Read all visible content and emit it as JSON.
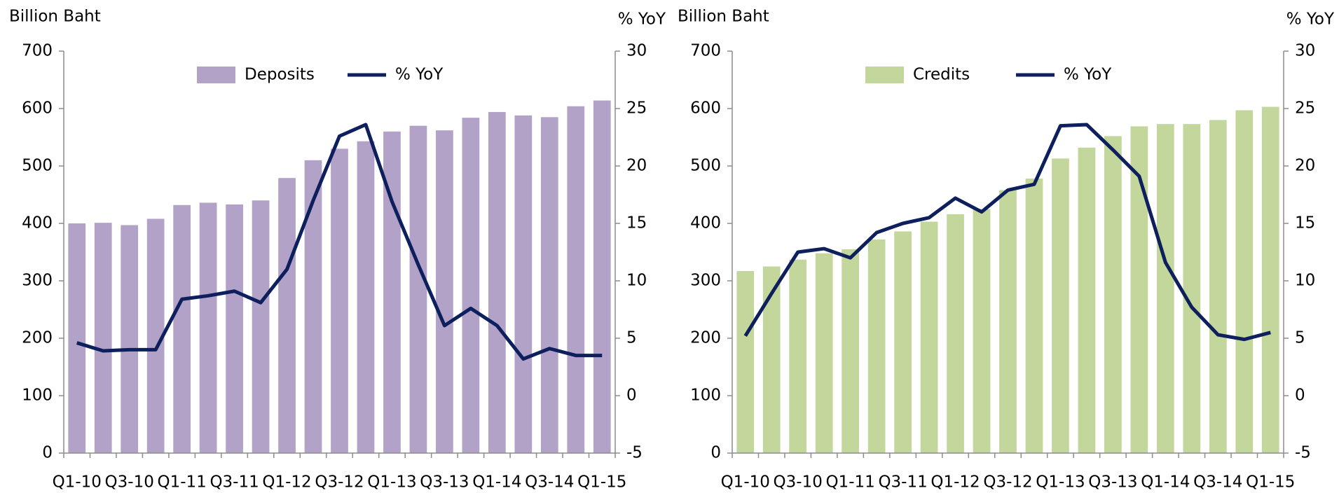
{
  "chart_data": [
    {
      "type": "bar",
      "y_label": "Billion Baht",
      "y2_label": "% YoY",
      "categories": [
        "Q1-10",
        null,
        "Q3-10",
        null,
        "Q1-11",
        null,
        "Q3-11",
        null,
        "Q1-12",
        null,
        "Q3-12",
        null,
        "Q1-13",
        null,
        "Q3-13",
        null,
        "Q1-14",
        null,
        "Q3-14",
        null,
        "Q1-15"
      ],
      "series": [
        {
          "name": "Deposits",
          "type": "bar",
          "color": "#b3a2c7",
          "values": [
            400,
            401,
            397,
            408,
            432,
            436,
            433,
            440,
            479,
            510,
            530,
            543,
            560,
            570,
            562,
            584,
            594,
            588,
            585,
            604,
            614
          ]
        },
        {
          "name": "% YoY",
          "type": "line",
          "axis": "y2",
          "color": "#0d1f5c",
          "values": [
            4.6,
            3.9,
            4.0,
            4.0,
            8.4,
            8.7,
            9.1,
            8.1,
            11.0,
            17.0,
            22.6,
            23.6,
            16.9,
            11.4,
            6.1,
            7.6,
            6.1,
            3.2,
            4.1,
            3.5,
            3.5
          ]
        }
      ],
      "ylim": [
        0,
        700
      ],
      "yticks": [
        0,
        100,
        200,
        300,
        400,
        500,
        600,
        700
      ],
      "y2lim": [
        -5,
        30
      ],
      "y2ticks": [
        -5,
        0,
        5,
        10,
        15,
        20,
        25,
        30
      ],
      "legend": "top",
      "grid": false
    },
    {
      "type": "bar",
      "y_label": "Billion Baht",
      "y2_label": "% YoY",
      "categories": [
        "Q1-10",
        null,
        "Q3-10",
        null,
        "Q1-11",
        null,
        "Q3-11",
        null,
        "Q1-12",
        null,
        "Q3-12",
        null,
        "Q1-13",
        null,
        "Q3-13",
        null,
        "Q1-14",
        null,
        "Q3-14",
        null,
        "Q1-15"
      ],
      "series": [
        {
          "name": "Credits",
          "type": "bar",
          "color": "#c3d69b",
          "values": [
            317,
            325,
            337,
            348,
            355,
            372,
            386,
            403,
            416,
            425,
            458,
            478,
            513,
            532,
            552,
            569,
            573,
            573,
            580,
            597,
            603
          ]
        },
        {
          "name": "% YoY",
          "type": "line",
          "axis": "y2",
          "color": "#0d1f5c",
          "values": [
            5.2,
            8.9,
            12.5,
            12.8,
            12.0,
            14.2,
            15.0,
            15.5,
            17.2,
            16.0,
            17.9,
            18.4,
            23.5,
            23.6,
            21.4,
            19.1,
            11.6,
            7.7,
            5.3,
            4.9,
            5.5
          ]
        }
      ],
      "ylim": [
        0,
        700
      ],
      "yticks": [
        0,
        100,
        200,
        300,
        400,
        500,
        600,
        700
      ],
      "y2lim": [
        -5,
        30
      ],
      "y2ticks": [
        -5,
        0,
        5,
        10,
        15,
        20,
        25,
        30
      ],
      "legend": "top",
      "grid": false
    }
  ]
}
